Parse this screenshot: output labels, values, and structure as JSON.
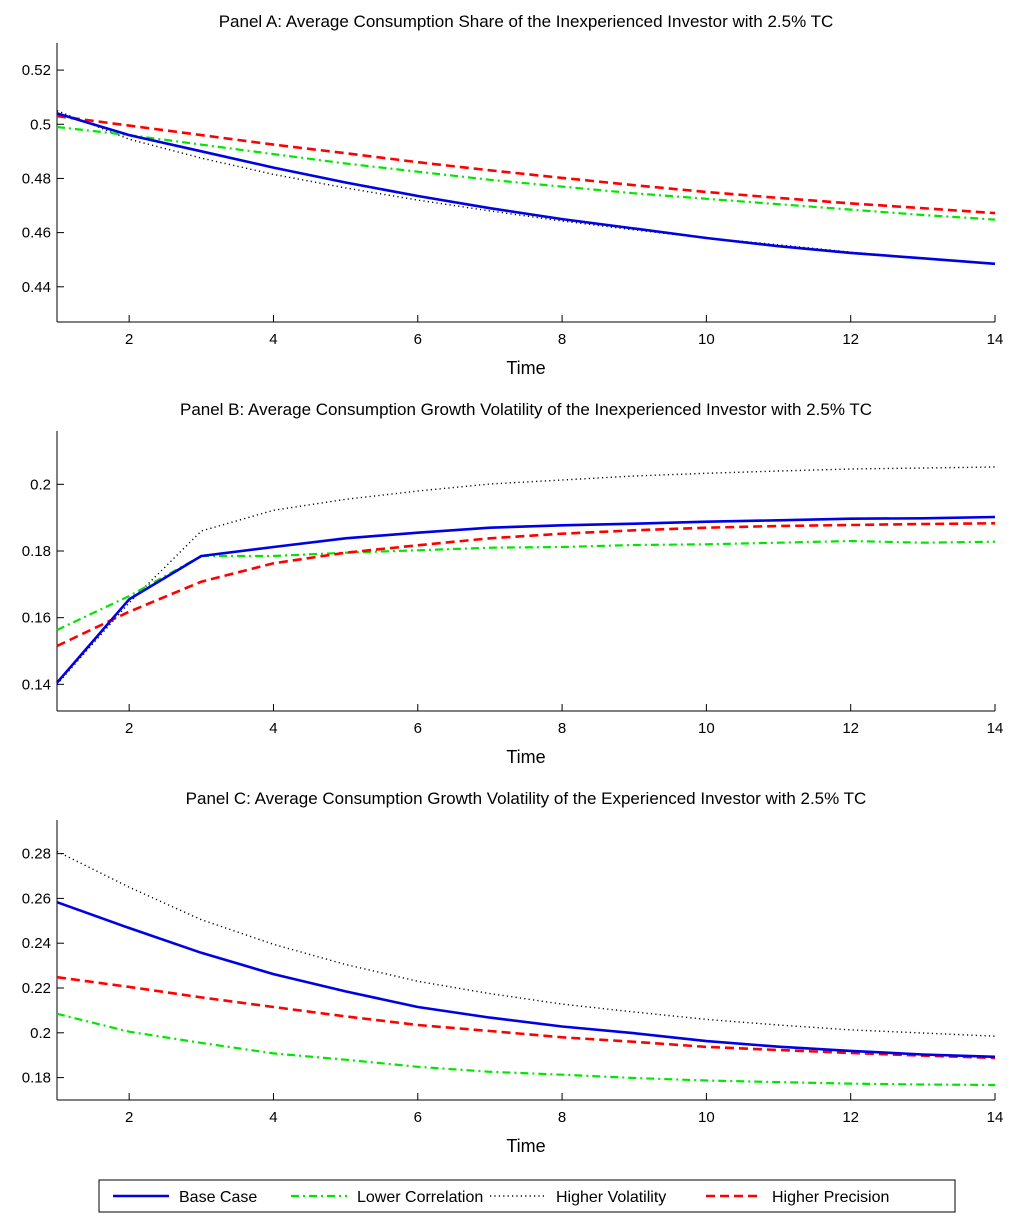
{
  "colors": {
    "base": "#0000e6",
    "lower_corr": "#00e600",
    "higher_vol": "#000000",
    "higher_prec": "#ff0000"
  },
  "legend": {
    "placement": "bottom-center",
    "items": [
      "Base Case",
      "Lower Correlation",
      "Higher Volatility",
      "Higher Precision"
    ]
  },
  "chart_data": [
    {
      "type": "line",
      "title": "Panel A: Average Consumption Share of the Inexperienced Investor with 2.5% TC",
      "xlabel": "Time",
      "ylabel": "",
      "xlim": [
        1,
        14
      ],
      "ylim": [
        0.427,
        0.53
      ],
      "xticks": [
        2,
        4,
        6,
        8,
        10,
        12,
        14
      ],
      "yticks": [
        0.44,
        0.46,
        0.48,
        0.5,
        0.52
      ],
      "ytick_labels": [
        "0.44",
        "0.46",
        "0.48",
        "0.5",
        "0.52"
      ],
      "x": [
        1,
        2,
        3,
        4,
        5,
        6,
        7,
        8,
        9,
        10,
        11,
        12,
        13,
        14
      ],
      "series": [
        {
          "name": "Base Case",
          "style": "solid",
          "values": [
            0.504,
            0.496,
            0.49,
            0.484,
            0.4785,
            0.4735,
            0.469,
            0.465,
            0.4615,
            0.458,
            0.455,
            0.4525,
            0.4505,
            0.4485
          ]
        },
        {
          "name": "Lower Correlation",
          "style": "dashdot",
          "values": [
            0.499,
            0.496,
            0.4925,
            0.489,
            0.4855,
            0.4825,
            0.4795,
            0.477,
            0.4745,
            0.4725,
            0.4705,
            0.4685,
            0.4665,
            0.4648
          ]
        },
        {
          "name": "Higher Volatility",
          "style": "dotted",
          "values": [
            0.505,
            0.4945,
            0.4875,
            0.4815,
            0.4765,
            0.472,
            0.468,
            0.4643,
            0.461,
            0.458,
            0.4555,
            0.4528,
            0.4505,
            0.4485
          ]
        },
        {
          "name": "Higher Precision",
          "style": "dashed",
          "values": [
            0.503,
            0.4995,
            0.496,
            0.4925,
            0.4893,
            0.486,
            0.483,
            0.4802,
            0.4775,
            0.475,
            0.4728,
            0.4708,
            0.469,
            0.4672
          ]
        }
      ]
    },
    {
      "type": "line",
      "title": "Panel B: Average Consumption Growth Volatility of the Inexperienced Investor with 2.5% TC",
      "xlabel": "Time",
      "ylabel": "",
      "xlim": [
        1,
        14
      ],
      "ylim": [
        0.132,
        0.216
      ],
      "xticks": [
        2,
        4,
        6,
        8,
        10,
        12,
        14
      ],
      "yticks": [
        0.14,
        0.16,
        0.18,
        0.2
      ],
      "ytick_labels": [
        "0.14",
        "0.16",
        "0.18",
        "0.2"
      ],
      "x": [
        1,
        2,
        3,
        4,
        5,
        6,
        7,
        8,
        9,
        10,
        11,
        12,
        13,
        14
      ],
      "series": [
        {
          "name": "Base Case",
          "style": "solid",
          "values": [
            0.1405,
            0.1655,
            0.1785,
            0.1812,
            0.1838,
            0.1855,
            0.187,
            0.1877,
            0.1882,
            0.1888,
            0.1892,
            0.1897,
            0.1898,
            0.1902
          ]
        },
        {
          "name": "Lower Correlation",
          "style": "dashdot",
          "values": [
            0.1563,
            0.1665,
            0.1785,
            0.1785,
            0.1795,
            0.1802,
            0.181,
            0.1812,
            0.1818,
            0.182,
            0.1825,
            0.183,
            0.1825,
            0.1828
          ]
        },
        {
          "name": "Higher Volatility",
          "style": "dotted",
          "values": [
            0.14,
            0.1645,
            0.186,
            0.1922,
            0.1955,
            0.198,
            0.2001,
            0.2013,
            0.2025,
            0.2033,
            0.204,
            0.2046,
            0.2049,
            0.2052
          ]
        },
        {
          "name": "Higher Precision",
          "style": "dashed",
          "values": [
            0.1515,
            0.1618,
            0.1708,
            0.1763,
            0.1795,
            0.1817,
            0.1838,
            0.1852,
            0.1862,
            0.187,
            0.1875,
            0.1878,
            0.1881,
            0.1883
          ]
        }
      ]
    },
    {
      "type": "line",
      "title": "Panel C: Average Consumption Growth Volatility of the Experienced Investor with 2.5% TC",
      "xlabel": "Time",
      "ylabel": "",
      "xlim": [
        1,
        14
      ],
      "ylim": [
        0.17,
        0.295
      ],
      "xticks": [
        2,
        4,
        6,
        8,
        10,
        12,
        14
      ],
      "yticks": [
        0.18,
        0.2,
        0.22,
        0.24,
        0.26,
        0.28
      ],
      "ytick_labels": [
        "0.18",
        "0.2",
        "0.22",
        "0.24",
        "0.26",
        "0.28"
      ],
      "x": [
        1,
        2,
        3,
        4,
        5,
        6,
        7,
        8,
        9,
        10,
        11,
        12,
        13,
        14
      ],
      "series": [
        {
          "name": "Base Case",
          "style": "solid",
          "values": [
            0.2583,
            0.2468,
            0.2357,
            0.2262,
            0.2185,
            0.2115,
            0.2068,
            0.2028,
            0.1998,
            0.1963,
            0.1938,
            0.1919,
            0.1903,
            0.1893
          ]
        },
        {
          "name": "Lower Correlation",
          "style": "dashdot",
          "values": [
            0.2085,
            0.2005,
            0.1955,
            0.1908,
            0.188,
            0.1848,
            0.1826,
            0.1813,
            0.1798,
            0.1787,
            0.178,
            0.1773,
            0.1769,
            0.1767
          ]
        },
        {
          "name": "Higher Volatility",
          "style": "dotted",
          "values": [
            0.281,
            0.265,
            0.2505,
            0.2395,
            0.2305,
            0.223,
            0.2175,
            0.2128,
            0.2093,
            0.206,
            0.2035,
            0.2013,
            0.1999,
            0.1985
          ]
        },
        {
          "name": "Higher Precision",
          "style": "dashed",
          "values": [
            0.2248,
            0.2205,
            0.2158,
            0.2115,
            0.2073,
            0.2035,
            0.2008,
            0.198,
            0.196,
            0.1937,
            0.1923,
            0.191,
            0.1898,
            0.1888
          ]
        }
      ]
    }
  ]
}
